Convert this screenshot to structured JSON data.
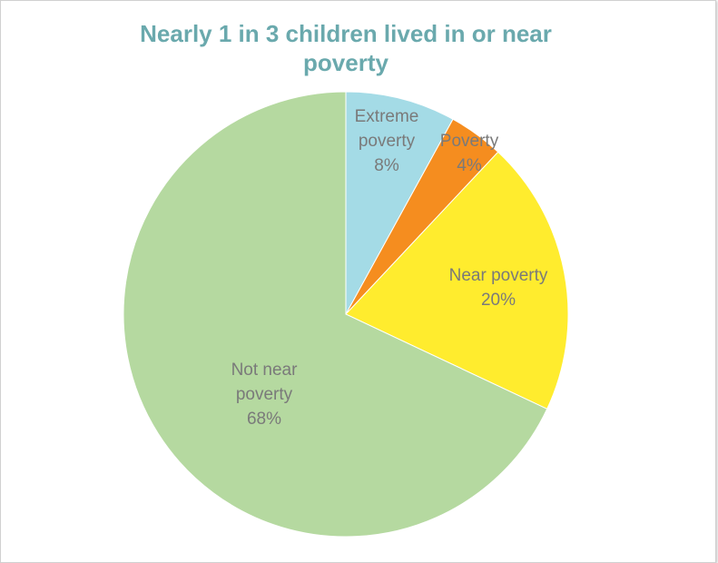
{
  "chart_data": {
    "type": "pie",
    "title": "Nearly 1 in 3 children lived in or near poverty",
    "start_angle_deg": 0,
    "direction": "clockwise",
    "legend": "none",
    "slices": [
      {
        "label_lines": [
          "Extreme",
          "poverty",
          "8%"
        ],
        "category": "Extreme poverty",
        "value": 8,
        "color": "#a4dbe6"
      },
      {
        "label_lines": [
          "Poverty",
          "4%"
        ],
        "category": "Poverty",
        "value": 4,
        "color": "#f58d1f"
      },
      {
        "label_lines": [
          "Near poverty",
          "20%"
        ],
        "category": "Near poverty",
        "value": 20,
        "color": "#ffec2e"
      },
      {
        "label_lines": [
          "Not near",
          "poverty",
          "68%"
        ],
        "category": "Not near poverty",
        "value": 68,
        "color": "#b5d9a0"
      }
    ]
  }
}
